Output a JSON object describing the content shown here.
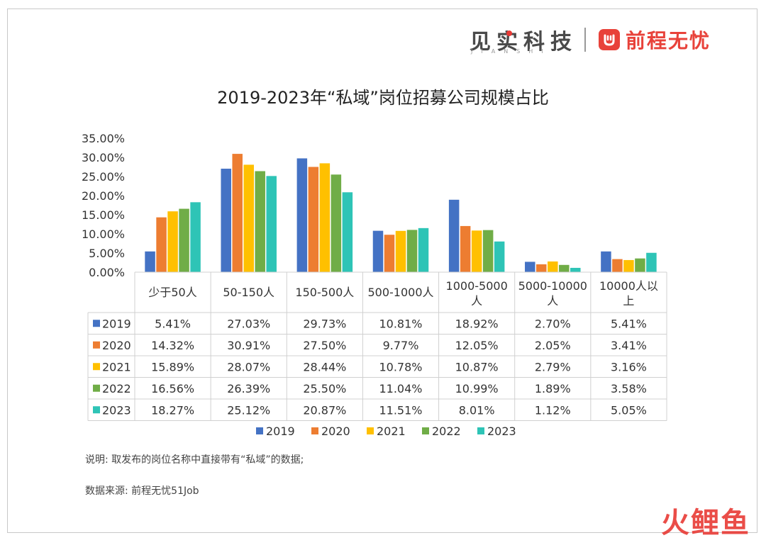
{
  "brand": {
    "jianshi": "见实科技",
    "jianshi_sub": "JIANSHI",
    "job51": "前程无忧"
  },
  "title": "2019-2023年“私域”岗位招募公司规模占比",
  "notes": {
    "description": "说明: 取发布的岗位名称中直接带有“私域”的数据;",
    "source": "数据来源: 前程无忧51Job"
  },
  "watermark": "火鲤鱼",
  "colors": {
    "2019": "#4472c4",
    "2020": "#ed7d31",
    "2021": "#ffc000",
    "2022": "#70ad47",
    "2023": "#2ec4b6",
    "accent": "#e8423a"
  },
  "chart_data": {
    "type": "bar",
    "title": "2019-2023年“私域”岗位招募公司规模占比",
    "categories": [
      "少于50人",
      "50-150人",
      "150-500人",
      "500-1000人",
      "1000-5000人",
      "5000-10000人",
      "10000人以上"
    ],
    "category_lines": [
      [
        "少于50人"
      ],
      [
        "50-150人"
      ],
      [
        "150-500人"
      ],
      [
        "500-1000人"
      ],
      [
        "1000-5000",
        "人"
      ],
      [
        "5000-10000",
        "人"
      ],
      [
        "10000人以",
        "上"
      ]
    ],
    "y_ticks": [
      "0.00%",
      "5.00%",
      "10.00%",
      "15.00%",
      "20.00%",
      "25.00%",
      "30.00%",
      "35.00%"
    ],
    "ylim": [
      0,
      35
    ],
    "series": [
      {
        "name": "2019",
        "values": [
          5.41,
          27.03,
          29.73,
          10.81,
          18.92,
          2.7,
          5.41
        ],
        "labels": [
          "5.41%",
          "27.03%",
          "29.73%",
          "10.81%",
          "18.92%",
          "2.70%",
          "5.41%"
        ]
      },
      {
        "name": "2020",
        "values": [
          14.32,
          30.91,
          27.5,
          9.77,
          12.05,
          2.05,
          3.41
        ],
        "labels": [
          "14.32%",
          "30.91%",
          "27.50%",
          "9.77%",
          "12.05%",
          "2.05%",
          "3.41%"
        ]
      },
      {
        "name": "2021",
        "values": [
          15.89,
          28.07,
          28.44,
          10.78,
          10.87,
          2.79,
          3.16
        ],
        "labels": [
          "15.89%",
          "28.07%",
          "28.44%",
          "10.78%",
          "10.87%",
          "2.79%",
          "3.16%"
        ]
      },
      {
        "name": "2022",
        "values": [
          16.56,
          26.39,
          25.5,
          11.04,
          10.99,
          1.89,
          3.58
        ],
        "labels": [
          "16.56%",
          "26.39%",
          "25.50%",
          "11.04%",
          "10.99%",
          "1.89%",
          "3.58%"
        ]
      },
      {
        "name": "2023",
        "values": [
          18.27,
          25.12,
          20.87,
          11.51,
          8.01,
          1.12,
          5.05
        ],
        "labels": [
          "18.27%",
          "25.12%",
          "20.87%",
          "11.51%",
          "8.01%",
          "1.12%",
          "5.05%"
        ]
      }
    ],
    "legend_position": "bottom",
    "data_table": true,
    "grid": false
  }
}
